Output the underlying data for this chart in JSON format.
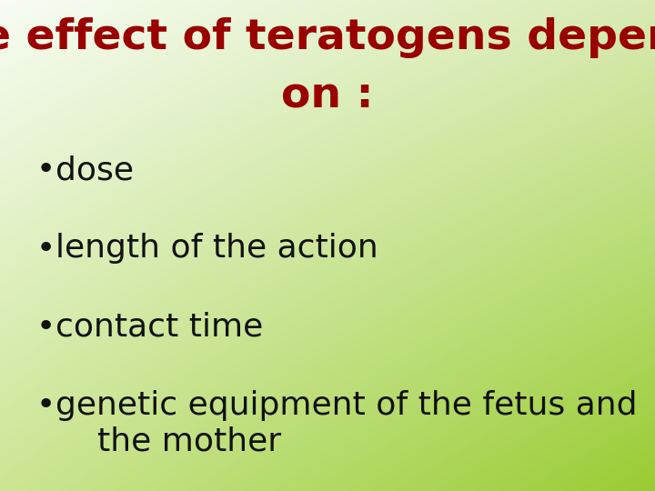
{
  "title_line1": "The effect of teratogens depends",
  "title_line2": "on :",
  "title_color": "#990000",
  "bullet_color": "#111111",
  "bullet_items": [
    "dose",
    "length of the action",
    "contact time",
    "genetic equipment of the fetus and\n    the mother"
  ],
  "tl_color": [
    0.97,
    0.99,
    0.96
  ],
  "tr_color": [
    0.85,
    0.92,
    0.7
  ],
  "bl_color": [
    0.8,
    0.9,
    0.58
  ],
  "br_color": [
    0.6,
    0.8,
    0.2
  ],
  "title_fontsize": 34,
  "bullet_fontsize": 26,
  "fig_width": 7.2,
  "fig_height": 5.4,
  "dpi": 100
}
